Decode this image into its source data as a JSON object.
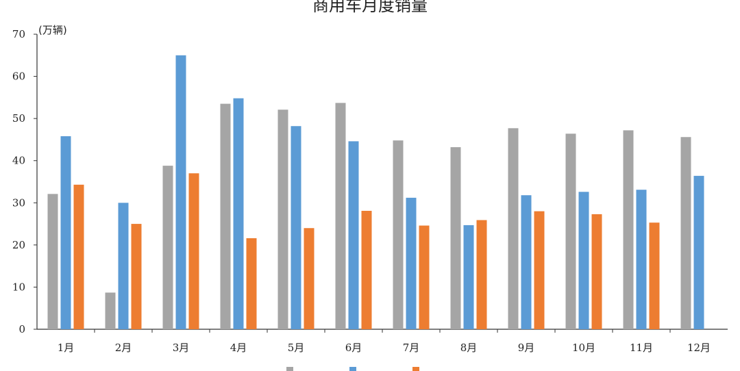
{
  "chart_data": {
    "type": "bar",
    "title": "商用车月度销量",
    "unit_label": "(万辆)",
    "categories": [
      "1月",
      "2月",
      "3月",
      "4月",
      "5月",
      "6月",
      "7月",
      "8月",
      "9月",
      "10月",
      "11月",
      "12月"
    ],
    "ylim": [
      0,
      70
    ],
    "yticks": [
      "0",
      "10",
      "20",
      "30",
      "40",
      "50",
      "60",
      "70"
    ],
    "grid": false,
    "legend_position": "bottom",
    "series": [
      {
        "name": "",
        "color": "#A5A5A5",
        "values": [
          32.1,
          8.7,
          38.8,
          53.5,
          52.1,
          53.7,
          44.8,
          43.2,
          47.7,
          46.4,
          47.2,
          45.6
        ]
      },
      {
        "name": "",
        "color": "#5B9BD5",
        "values": [
          45.8,
          30.0,
          65.0,
          54.8,
          48.2,
          44.6,
          31.2,
          24.7,
          31.8,
          32.6,
          33.1,
          36.4
        ]
      },
      {
        "name": "",
        "color": "#ED7D31",
        "values": [
          34.3,
          25.0,
          37.0,
          21.6,
          24.0,
          28.1,
          24.6,
          25.9,
          28.0,
          27.3,
          25.3,
          null
        ]
      }
    ]
  }
}
